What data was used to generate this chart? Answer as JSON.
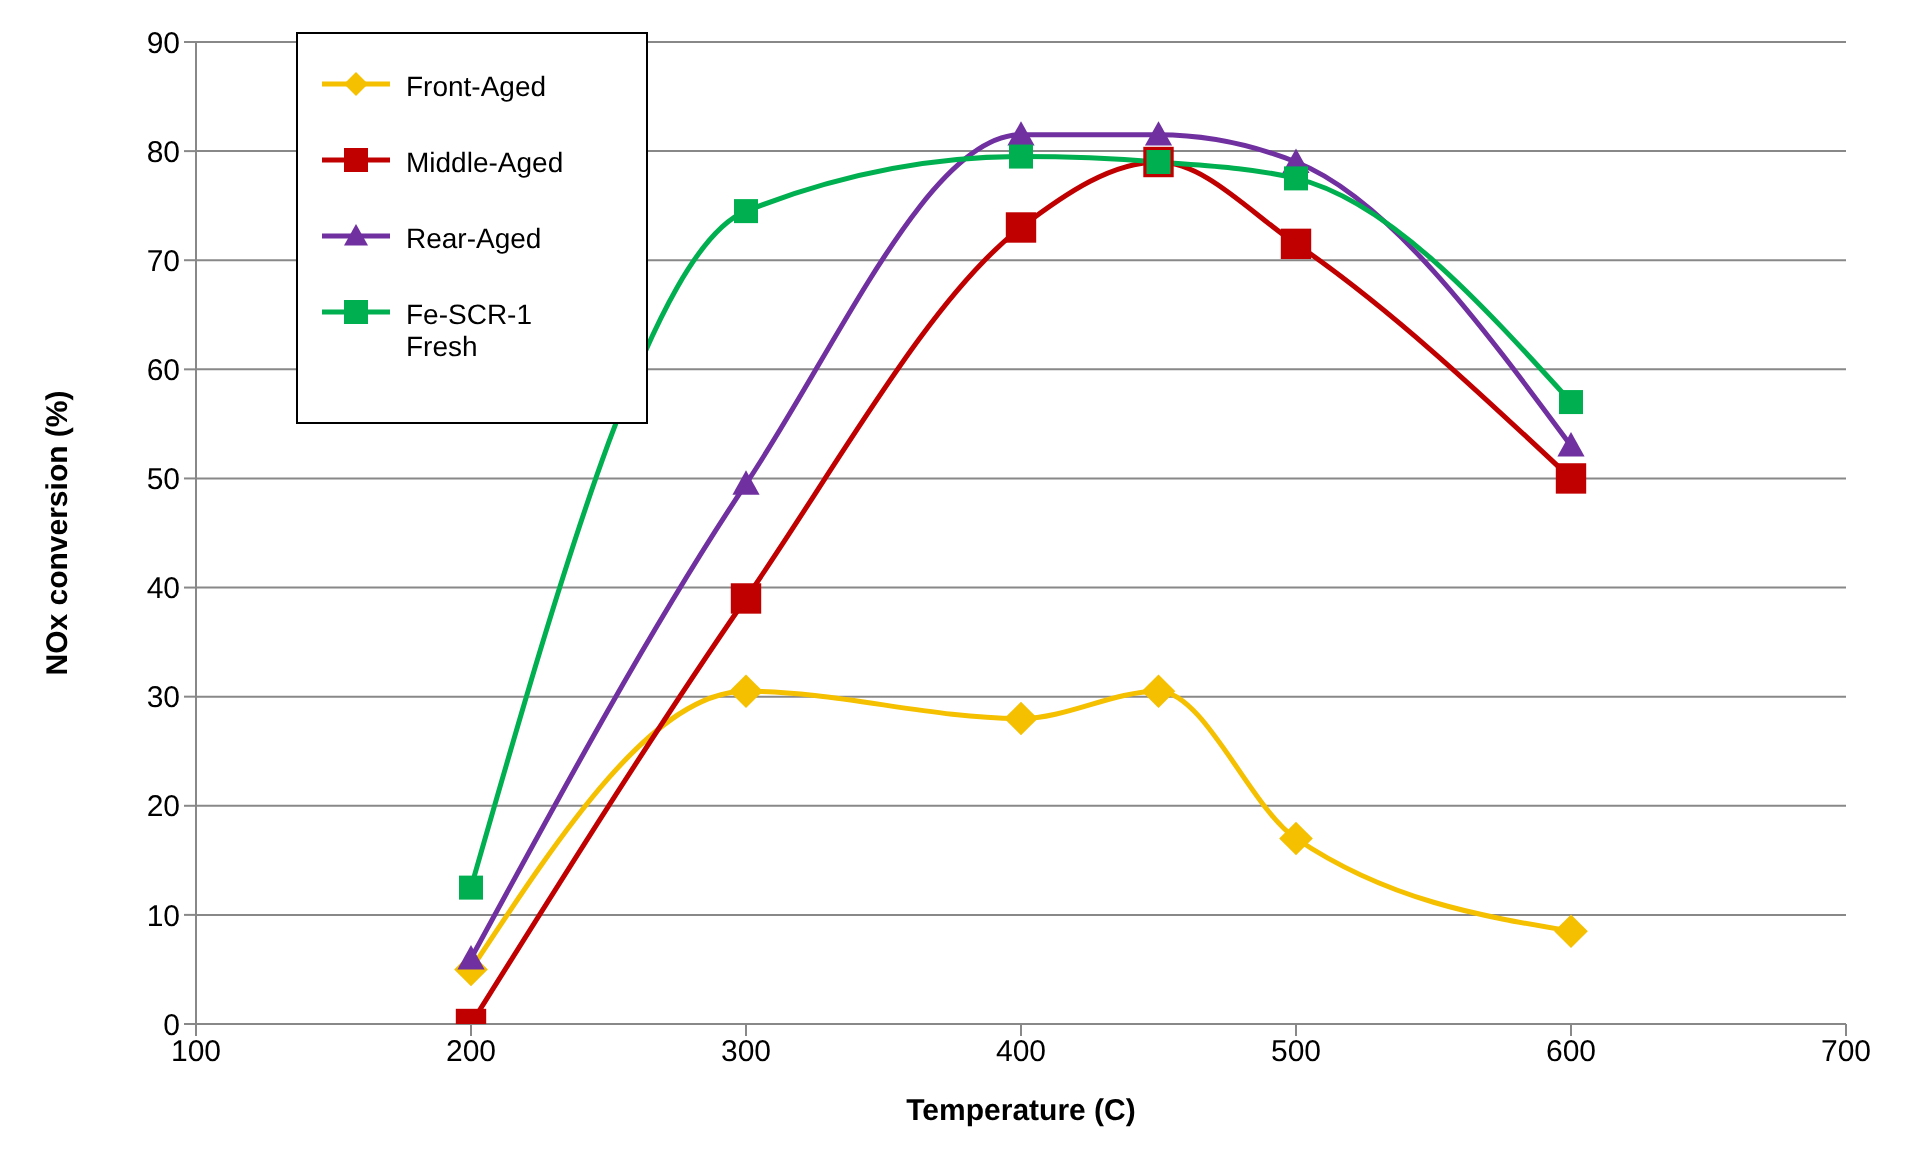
{
  "chart_data": {
    "type": "line",
    "xlabel": "Temperature (C)",
    "ylabel": "NOx conversion (%)",
    "xlim": [
      100,
      700
    ],
    "xticks": [
      100,
      200,
      300,
      400,
      500,
      600,
      700
    ],
    "ylim": [
      0,
      90
    ],
    "yticks": [
      0,
      10,
      20,
      30,
      40,
      50,
      60,
      70,
      80,
      90
    ],
    "grid": "y",
    "legend": "top left",
    "line_style": "solid",
    "series": [
      {
        "name": "Front-Aged",
        "color": "#f5c000",
        "marker": "diamond",
        "x": [
          200,
          300,
          400,
          450,
          500,
          600
        ],
        "values": [
          5,
          30.5,
          28,
          30.5,
          17,
          8.5
        ]
      },
      {
        "name": "Middle-Aged",
        "color": "#c00000",
        "marker": "square",
        "x": [
          200,
          300,
          400,
          450,
          500,
          600
        ],
        "values": [
          0,
          39,
          73,
          79,
          71.5,
          50
        ]
      },
      {
        "name": "Rear-Aged",
        "color": "#7030a0",
        "marker": "triangle",
        "x": [
          200,
          300,
          400,
          450,
          500,
          600
        ],
        "values": [
          6,
          49.5,
          81.5,
          81.5,
          79,
          53
        ]
      },
      {
        "name": "Fe-SCR-1 Fresh",
        "color": "#00b050",
        "marker": "square",
        "x": [
          200,
          300,
          400,
          450,
          500,
          600
        ],
        "values": [
          12.5,
          74.5,
          79.5,
          79,
          77.5,
          57
        ]
      }
    ]
  }
}
